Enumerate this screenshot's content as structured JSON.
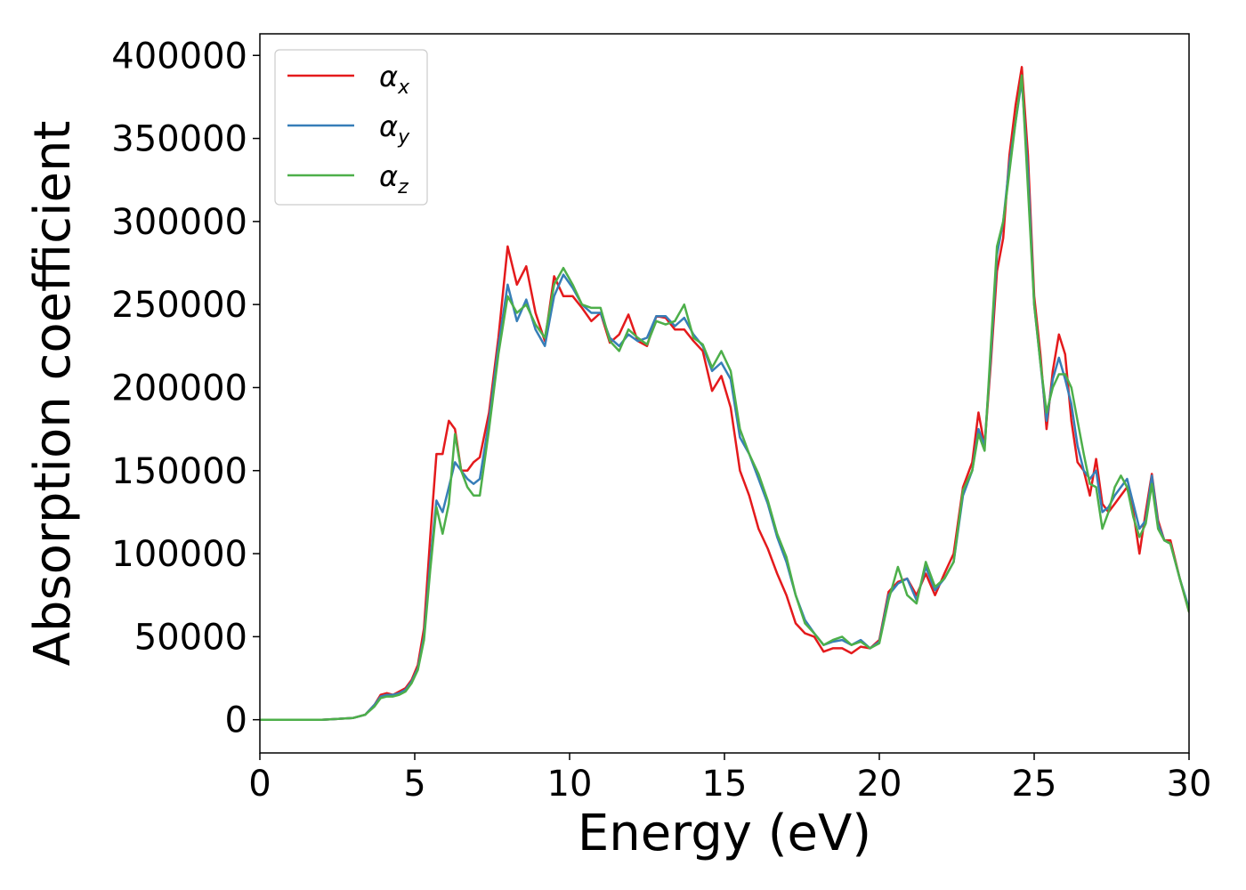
{
  "chart_data": {
    "type": "line",
    "title": "",
    "xlabel": "Energy (eV)",
    "ylabel": "Absorption coefficient",
    "xlim": [
      0,
      30
    ],
    "ylim": [
      -20000,
      413000
    ],
    "xticks": [
      0,
      5,
      10,
      15,
      20,
      25,
      30
    ],
    "xtick_labels": [
      "0",
      "5",
      "10",
      "15",
      "20",
      "25",
      "30"
    ],
    "yticks": [
      0,
      50000,
      100000,
      150000,
      200000,
      250000,
      300000,
      350000,
      400000
    ],
    "ytick_labels": [
      "0",
      "50000",
      "100000",
      "150000",
      "200000",
      "250000",
      "300000",
      "350000",
      "400000"
    ],
    "grid": false,
    "legend_position": "top-left",
    "series": [
      {
        "name": "α",
        "subscript": "x",
        "color": "#e41a1c",
        "x": [
          0,
          1,
          2,
          3,
          3.4,
          3.7,
          3.9,
          4.1,
          4.3,
          4.5,
          4.7,
          4.9,
          5.1,
          5.3,
          5.5,
          5.7,
          5.9,
          6.1,
          6.3,
          6.5,
          6.7,
          6.9,
          7.1,
          7.4,
          7.7,
          8.0,
          8.3,
          8.6,
          8.9,
          9.2,
          9.5,
          9.8,
          10.1,
          10.4,
          10.7,
          11.0,
          11.3,
          11.6,
          11.9,
          12.2,
          12.5,
          12.8,
          13.1,
          13.4,
          13.7,
          14.0,
          14.3,
          14.6,
          14.9,
          15.2,
          15.5,
          15.8,
          16.1,
          16.4,
          16.7,
          17.0,
          17.3,
          17.6,
          17.9,
          18.2,
          18.5,
          18.8,
          19.1,
          19.4,
          19.7,
          20.0,
          20.3,
          20.6,
          20.9,
          21.2,
          21.5,
          21.8,
          22.1,
          22.4,
          22.7,
          23.0,
          23.2,
          23.4,
          23.6,
          23.8,
          24.0,
          24.2,
          24.4,
          24.6,
          24.8,
          25.0,
          25.2,
          25.4,
          25.6,
          25.8,
          26.0,
          26.2,
          26.4,
          26.6,
          26.8,
          27.0,
          27.2,
          27.4,
          27.6,
          27.8,
          28.0,
          28.2,
          28.4,
          28.6,
          28.8,
          29.0,
          29.2,
          29.4,
          29.7,
          30.0
        ],
        "y": [
          0,
          0,
          0,
          1000,
          3000,
          9000,
          15000,
          16000,
          15000,
          17000,
          19000,
          24000,
          33000,
          55000,
          110000,
          160000,
          160000,
          180000,
          175000,
          150000,
          150000,
          155000,
          158000,
          185000,
          230000,
          285000,
          262000,
          273000,
          245000,
          228000,
          267000,
          255000,
          255000,
          248000,
          240000,
          245000,
          227000,
          232000,
          244000,
          228000,
          225000,
          243000,
          242000,
          235000,
          235000,
          228000,
          222000,
          198000,
          207000,
          188000,
          150000,
          135000,
          115000,
          103000,
          88000,
          75000,
          58000,
          52000,
          50000,
          41000,
          43000,
          43000,
          40000,
          44000,
          43000,
          48000,
          77000,
          83000,
          85000,
          75000,
          88000,
          75000,
          88000,
          100000,
          140000,
          155000,
          185000,
          165000,
          215000,
          270000,
          290000,
          340000,
          370000,
          393000,
          340000,
          255000,
          220000,
          175000,
          210000,
          232000,
          220000,
          180000,
          155000,
          150000,
          135000,
          157000,
          130000,
          125000,
          130000,
          135000,
          140000,
          125000,
          100000,
          125000,
          148000,
          120000,
          108000,
          108000,
          85000,
          65000
        ]
      },
      {
        "name": "α",
        "subscript": "y",
        "color": "#377eb8",
        "x": [
          0,
          1,
          2,
          3,
          3.4,
          3.7,
          3.9,
          4.1,
          4.3,
          4.5,
          4.7,
          4.9,
          5.1,
          5.3,
          5.5,
          5.7,
          5.9,
          6.1,
          6.3,
          6.5,
          6.7,
          6.9,
          7.1,
          7.4,
          7.7,
          8.0,
          8.3,
          8.6,
          8.9,
          9.2,
          9.5,
          9.8,
          10.1,
          10.4,
          10.7,
          11.0,
          11.3,
          11.6,
          11.9,
          12.2,
          12.5,
          12.8,
          13.1,
          13.4,
          13.7,
          14.0,
          14.3,
          14.6,
          14.9,
          15.2,
          15.5,
          15.8,
          16.1,
          16.4,
          16.7,
          17.0,
          17.3,
          17.6,
          17.9,
          18.2,
          18.5,
          18.8,
          19.1,
          19.4,
          19.7,
          20.0,
          20.3,
          20.6,
          20.9,
          21.2,
          21.5,
          21.8,
          22.1,
          22.4,
          22.7,
          23.0,
          23.2,
          23.4,
          23.6,
          23.8,
          24.0,
          24.2,
          24.4,
          24.6,
          24.8,
          25.0,
          25.2,
          25.4,
          25.6,
          25.8,
          26.0,
          26.2,
          26.4,
          26.6,
          26.8,
          27.0,
          27.2,
          27.4,
          27.6,
          27.8,
          28.0,
          28.2,
          28.4,
          28.6,
          28.8,
          29.0,
          29.2,
          29.4,
          29.7,
          30.0
        ],
        "y": [
          0,
          0,
          0,
          1000,
          3000,
          9000,
          14000,
          15000,
          15000,
          16000,
          18000,
          23000,
          31000,
          50000,
          95000,
          132000,
          125000,
          140000,
          155000,
          150000,
          145000,
          142000,
          145000,
          180000,
          225000,
          262000,
          240000,
          253000,
          235000,
          225000,
          255000,
          268000,
          260000,
          250000,
          245000,
          245000,
          230000,
          225000,
          232000,
          228000,
          230000,
          243000,
          243000,
          237000,
          242000,
          232000,
          225000,
          210000,
          215000,
          205000,
          170000,
          160000,
          145000,
          130000,
          110000,
          95000,
          75000,
          60000,
          52000,
          45000,
          47000,
          48000,
          45000,
          48000,
          43000,
          47000,
          75000,
          82000,
          85000,
          72000,
          92000,
          78000,
          85000,
          95000,
          135000,
          150000,
          175000,
          165000,
          220000,
          280000,
          300000,
          335000,
          360000,
          385000,
          330000,
          250000,
          215000,
          180000,
          205000,
          218000,
          205000,
          190000,
          165000,
          150000,
          145000,
          150000,
          125000,
          128000,
          135000,
          140000,
          145000,
          130000,
          115000,
          120000,
          147000,
          118000,
          108000,
          106000,
          85000,
          67000
        ]
      },
      {
        "name": "α",
        "subscript": "z",
        "color": "#4daf4a",
        "x": [
          0,
          1,
          2,
          3,
          3.4,
          3.7,
          3.9,
          4.1,
          4.3,
          4.5,
          4.7,
          4.9,
          5.1,
          5.3,
          5.5,
          5.7,
          5.9,
          6.1,
          6.3,
          6.5,
          6.7,
          6.9,
          7.1,
          7.4,
          7.7,
          8.0,
          8.3,
          8.6,
          8.9,
          9.2,
          9.5,
          9.8,
          10.1,
          10.4,
          10.7,
          11.0,
          11.3,
          11.6,
          11.9,
          12.2,
          12.5,
          12.8,
          13.1,
          13.4,
          13.7,
          14.0,
          14.3,
          14.6,
          14.9,
          15.2,
          15.5,
          15.8,
          16.1,
          16.4,
          16.7,
          17.0,
          17.3,
          17.6,
          17.9,
          18.2,
          18.5,
          18.8,
          19.1,
          19.4,
          19.7,
          20.0,
          20.3,
          20.6,
          20.9,
          21.2,
          21.5,
          21.8,
          22.1,
          22.4,
          22.7,
          23.0,
          23.2,
          23.4,
          23.6,
          23.8,
          24.0,
          24.2,
          24.4,
          24.6,
          24.8,
          25.0,
          25.2,
          25.4,
          25.6,
          25.8,
          26.0,
          26.2,
          26.4,
          26.6,
          26.8,
          27.0,
          27.2,
          27.4,
          27.6,
          27.8,
          28.0,
          28.2,
          28.4,
          28.6,
          28.8,
          29.0,
          29.2,
          29.4,
          29.7,
          30.0
        ],
        "y": [
          0,
          0,
          0,
          1000,
          3000,
          8000,
          13000,
          14000,
          14000,
          15000,
          17000,
          22000,
          30000,
          48000,
          90000,
          128000,
          112000,
          130000,
          172000,
          150000,
          140000,
          135000,
          135000,
          175000,
          220000,
          255000,
          245000,
          250000,
          238000,
          230000,
          262000,
          272000,
          262000,
          250000,
          248000,
          248000,
          228000,
          222000,
          235000,
          230000,
          226000,
          240000,
          238000,
          240000,
          250000,
          230000,
          226000,
          212000,
          222000,
          210000,
          175000,
          160000,
          148000,
          132000,
          112000,
          98000,
          75000,
          58000,
          52000,
          45000,
          48000,
          50000,
          45000,
          47000,
          43000,
          46000,
          72000,
          92000,
          75000,
          70000,
          95000,
          80000,
          85000,
          95000,
          138000,
          150000,
          172000,
          162000,
          225000,
          285000,
          300000,
          330000,
          360000,
          388000,
          320000,
          250000,
          215000,
          185000,
          200000,
          208000,
          208000,
          200000,
          180000,
          160000,
          142000,
          140000,
          115000,
          125000,
          140000,
          147000,
          140000,
          122000,
          110000,
          118000,
          142000,
          115000,
          108000,
          106000,
          85000,
          65000
        ]
      }
    ]
  }
}
